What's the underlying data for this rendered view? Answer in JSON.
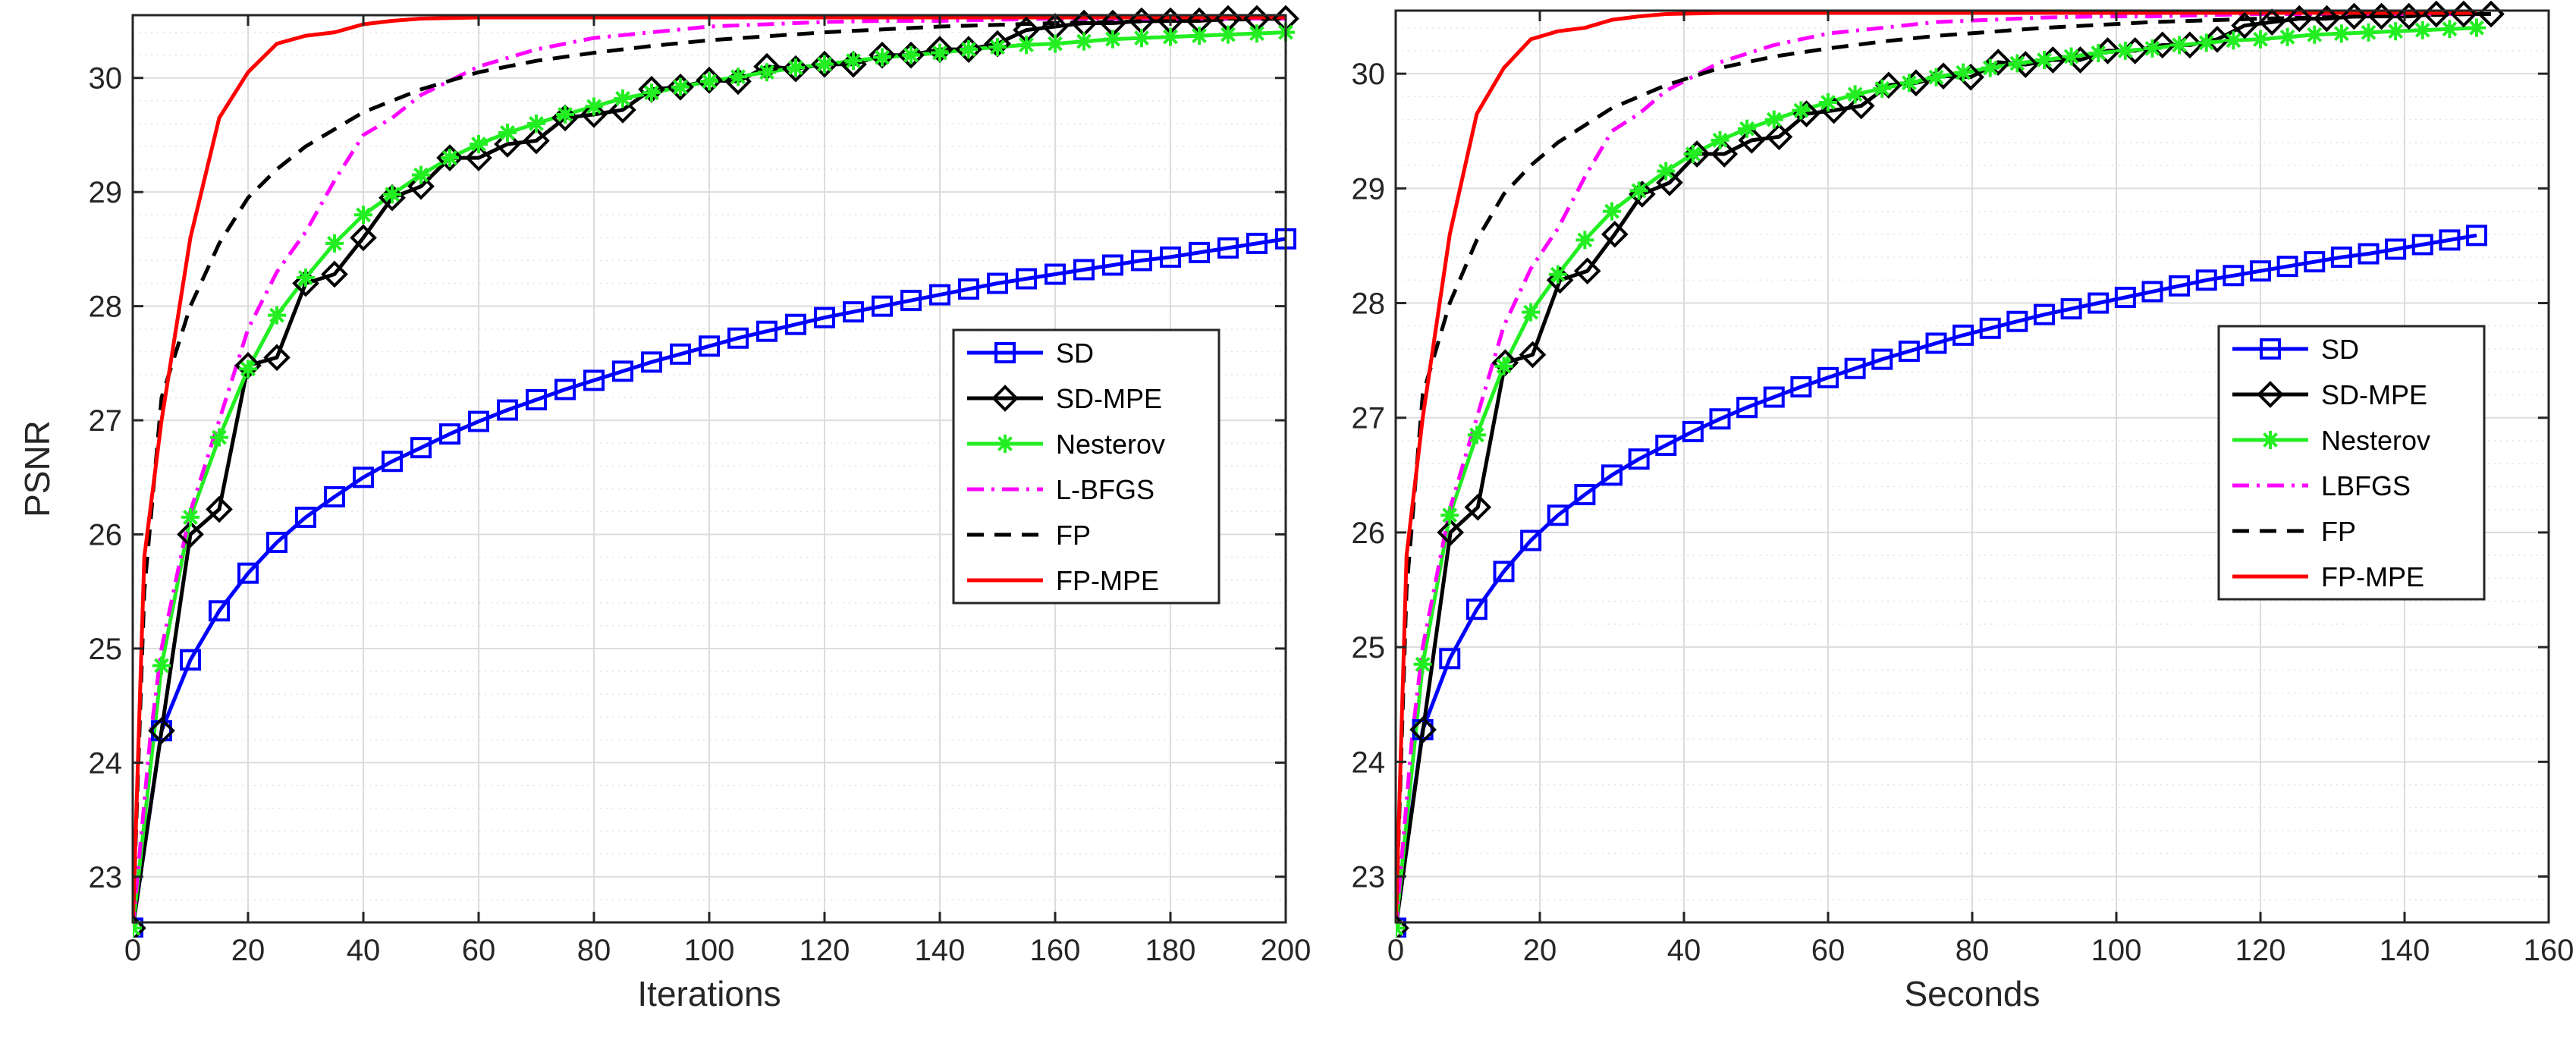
{
  "chart_data": [
    {
      "type": "line",
      "xlabel": "Iterations",
      "ylabel": "PSNR",
      "xlim": [
        0,
        200
      ],
      "ylim": [
        22.6,
        30.55
      ],
      "xticks": [
        "0",
        "20",
        "40",
        "60",
        "80",
        "100",
        "120",
        "140",
        "160",
        "180",
        "200"
      ],
      "yticks": [
        "23",
        "24",
        "25",
        "26",
        "27",
        "28",
        "29",
        "30"
      ],
      "grid": true,
      "minor_grid": true,
      "legend_position": "center-right",
      "series": [
        {
          "name": "SD",
          "color": "#0000ff",
          "style": "solid",
          "marker": "square",
          "marker_every": 5,
          "x": [
            0,
            5,
            10,
            15,
            20,
            25,
            30,
            35,
            40,
            45,
            50,
            55,
            60,
            65,
            70,
            75,
            80,
            85,
            90,
            95,
            100,
            105,
            110,
            115,
            120,
            125,
            130,
            135,
            140,
            145,
            150,
            155,
            160,
            165,
            170,
            175,
            180,
            185,
            190,
            195,
            200
          ],
          "y": [
            22.55,
            24.28,
            24.9,
            25.33,
            25.66,
            25.93,
            26.15,
            26.33,
            26.5,
            26.64,
            26.76,
            26.88,
            26.99,
            27.09,
            27.18,
            27.27,
            27.35,
            27.43,
            27.51,
            27.58,
            27.65,
            27.72,
            27.78,
            27.84,
            27.9,
            27.95,
            28.0,
            28.05,
            28.1,
            28.15,
            28.2,
            28.24,
            28.28,
            28.32,
            28.36,
            28.4,
            28.43,
            28.47,
            28.51,
            28.55,
            28.59
          ]
        },
        {
          "name": "SD-MPE",
          "color": "#000000",
          "style": "solid",
          "marker": "diamond",
          "marker_every": 5,
          "x": [
            0,
            5,
            10,
            15,
            20,
            25,
            30,
            35,
            40,
            45,
            50,
            55,
            60,
            65,
            70,
            75,
            80,
            85,
            90,
            95,
            100,
            105,
            110,
            115,
            120,
            125,
            130,
            135,
            140,
            145,
            150,
            155,
            160,
            165,
            170,
            175,
            180,
            185,
            190,
            195,
            200
          ],
          "y": [
            22.55,
            24.28,
            26.0,
            26.22,
            27.48,
            27.55,
            28.2,
            28.28,
            28.6,
            28.95,
            29.05,
            29.3,
            29.3,
            29.42,
            29.45,
            29.65,
            29.68,
            29.72,
            29.9,
            29.92,
            29.98,
            29.97,
            30.1,
            30.08,
            30.12,
            30.12,
            30.2,
            30.2,
            30.25,
            30.25,
            30.3,
            30.42,
            30.45,
            30.48,
            30.48,
            30.5,
            30.5,
            30.5,
            30.52,
            30.52,
            30.52
          ]
        },
        {
          "name": "Nesterov",
          "color": "#22ee22",
          "style": "solid",
          "marker": "asterisk",
          "marker_every": 5,
          "x": [
            0,
            5,
            10,
            15,
            20,
            25,
            30,
            35,
            40,
            45,
            50,
            55,
            60,
            65,
            70,
            75,
            80,
            85,
            90,
            95,
            100,
            105,
            110,
            115,
            120,
            125,
            130,
            135,
            140,
            145,
            150,
            155,
            160,
            165,
            170,
            175,
            180,
            185,
            190,
            195,
            200
          ],
          "y": [
            22.55,
            24.85,
            26.15,
            26.85,
            27.45,
            27.92,
            28.25,
            28.55,
            28.8,
            28.98,
            29.15,
            29.3,
            29.42,
            29.52,
            29.6,
            29.68,
            29.75,
            29.82,
            29.87,
            29.92,
            29.97,
            30.01,
            30.05,
            30.09,
            30.12,
            30.15,
            30.18,
            30.2,
            30.22,
            30.25,
            30.27,
            30.29,
            30.3,
            30.32,
            30.34,
            30.35,
            30.36,
            30.37,
            30.38,
            30.39,
            30.4
          ]
        },
        {
          "name": "L-BFGS",
          "color": "#ff00ff",
          "style": "dashdot",
          "marker": "none",
          "x": [
            0,
            3,
            5,
            10,
            15,
            20,
            25,
            30,
            35,
            40,
            45,
            50,
            60,
            70,
            80,
            90,
            100,
            110,
            120,
            130,
            140,
            150,
            160,
            180,
            200
          ],
          "y": [
            22.55,
            24.2,
            25.0,
            26.2,
            27.0,
            27.8,
            28.3,
            28.65,
            29.1,
            29.5,
            29.65,
            29.85,
            30.1,
            30.25,
            30.35,
            30.4,
            30.45,
            30.47,
            30.49,
            30.5,
            30.5,
            30.51,
            30.52,
            30.52,
            30.52
          ]
        },
        {
          "name": "FP",
          "color": "#000000",
          "style": "dashed",
          "marker": "none",
          "x": [
            0,
            2,
            5,
            10,
            15,
            20,
            25,
            30,
            40,
            50,
            60,
            70,
            80,
            90,
            100,
            120,
            140,
            160,
            180,
            200
          ],
          "y": [
            22.55,
            25.5,
            27.2,
            28.0,
            28.55,
            28.95,
            29.2,
            29.4,
            29.7,
            29.9,
            30.05,
            30.15,
            30.22,
            30.28,
            30.33,
            30.4,
            30.45,
            30.48,
            30.5,
            30.52
          ]
        },
        {
          "name": "FP-MPE",
          "color": "#ff0000",
          "style": "solid",
          "marker": "none",
          "x": [
            0,
            2,
            5,
            10,
            15,
            20,
            25,
            30,
            35,
            40,
            45,
            50,
            60,
            80,
            100,
            200
          ],
          "y": [
            22.55,
            25.8,
            27.0,
            28.6,
            29.65,
            30.05,
            30.3,
            30.37,
            30.4,
            30.47,
            30.5,
            30.52,
            30.53,
            30.53,
            30.53,
            30.53
          ]
        }
      ]
    },
    {
      "type": "line",
      "xlabel": "Seconds",
      "ylabel": "",
      "xlim": [
        0,
        160
      ],
      "ylim": [
        22.6,
        30.55
      ],
      "xticks": [
        "0",
        "20",
        "40",
        "60",
        "80",
        "100",
        "120",
        "140",
        "160"
      ],
      "yticks": [
        "23",
        "24",
        "25",
        "26",
        "27",
        "28",
        "29",
        "30"
      ],
      "grid": true,
      "minor_grid": true,
      "legend_position": "center-right",
      "series": [
        {
          "name": "SD",
          "color": "#0000ff",
          "style": "solid",
          "marker": "square",
          "marker_every": 5,
          "x": [
            0,
            3.75,
            7.5,
            11.25,
            15,
            18.75,
            22.5,
            26.25,
            30,
            33.75,
            37.5,
            41.25,
            45,
            48.75,
            52.5,
            56.25,
            60,
            63.75,
            67.5,
            71.25,
            75,
            78.75,
            82.5,
            86.25,
            90,
            93.75,
            97.5,
            101.25,
            105,
            108.75,
            112.5,
            116.25,
            120,
            123.75,
            127.5,
            131.25,
            135,
            138.75,
            142.5,
            146.25,
            150
          ],
          "y": [
            22.55,
            24.28,
            24.9,
            25.33,
            25.66,
            25.93,
            26.15,
            26.33,
            26.5,
            26.64,
            26.76,
            26.88,
            26.99,
            27.09,
            27.18,
            27.27,
            27.35,
            27.43,
            27.51,
            27.58,
            27.65,
            27.72,
            27.78,
            27.84,
            27.9,
            27.95,
            28.0,
            28.05,
            28.1,
            28.15,
            28.2,
            28.24,
            28.28,
            28.32,
            28.36,
            28.4,
            28.43,
            28.47,
            28.51,
            28.55,
            28.59
          ]
        },
        {
          "name": "SD-MPE",
          "color": "#000000",
          "style": "solid",
          "marker": "diamond",
          "marker_every": 5,
          "x": [
            0,
            3.8,
            7.6,
            11.4,
            15.2,
            19,
            22.8,
            26.6,
            30.4,
            34.2,
            38,
            41.8,
            45.6,
            49.4,
            53.2,
            57,
            60.8,
            64.6,
            68.4,
            72.2,
            76,
            79.8,
            83.6,
            87.4,
            91.2,
            95,
            98.8,
            102.6,
            106.4,
            110.2,
            114,
            117.8,
            121.6,
            125.4,
            129.2,
            133,
            136.8,
            140.6,
            144.4,
            148.2,
            152
          ],
          "y": [
            22.55,
            24.28,
            26.0,
            26.22,
            27.48,
            27.55,
            28.2,
            28.28,
            28.6,
            28.95,
            29.05,
            29.3,
            29.3,
            29.42,
            29.45,
            29.65,
            29.68,
            29.72,
            29.9,
            29.92,
            29.98,
            29.97,
            30.1,
            30.08,
            30.12,
            30.12,
            30.2,
            30.2,
            30.25,
            30.25,
            30.3,
            30.42,
            30.45,
            30.48,
            30.48,
            30.5,
            30.5,
            30.5,
            30.52,
            30.52,
            30.52
          ]
        },
        {
          "name": "Nesterov",
          "color": "#22ee22",
          "style": "solid",
          "marker": "asterisk",
          "marker_every": 5,
          "x": [
            0,
            3.75,
            7.5,
            11.25,
            15,
            18.75,
            22.5,
            26.25,
            30,
            33.75,
            37.5,
            41.25,
            45,
            48.75,
            52.5,
            56.25,
            60,
            63.75,
            67.5,
            71.25,
            75,
            78.75,
            82.5,
            86.25,
            90,
            93.75,
            97.5,
            101.25,
            105,
            108.75,
            112.5,
            116.25,
            120,
            123.75,
            127.5,
            131.25,
            135,
            138.75,
            142.5,
            146.25,
            150
          ],
          "y": [
            22.55,
            24.85,
            26.15,
            26.85,
            27.45,
            27.92,
            28.25,
            28.55,
            28.8,
            28.98,
            29.15,
            29.3,
            29.42,
            29.52,
            29.6,
            29.68,
            29.75,
            29.82,
            29.87,
            29.92,
            29.97,
            30.01,
            30.05,
            30.09,
            30.12,
            30.15,
            30.18,
            30.2,
            30.22,
            30.25,
            30.27,
            30.29,
            30.3,
            30.32,
            30.34,
            30.35,
            30.36,
            30.37,
            30.38,
            30.39,
            30.4
          ]
        },
        {
          "name": "LBFGS",
          "color": "#ff00ff",
          "style": "dashdot",
          "marker": "none",
          "x": [
            0,
            2.25,
            3.75,
            7.5,
            11.25,
            15,
            18.75,
            22.5,
            26.25,
            30,
            33.75,
            37.5,
            45,
            52.5,
            60,
            67.5,
            75,
            82.5,
            90,
            97.5,
            105,
            112.5,
            120,
            135,
            150
          ],
          "y": [
            22.55,
            24.2,
            25.0,
            26.2,
            27.0,
            27.8,
            28.3,
            28.65,
            29.1,
            29.5,
            29.65,
            29.85,
            30.1,
            30.25,
            30.35,
            30.4,
            30.45,
            30.47,
            30.49,
            30.5,
            30.5,
            30.51,
            30.52,
            30.52,
            30.52
          ]
        },
        {
          "name": "FP",
          "color": "#000000",
          "style": "dashed",
          "marker": "none",
          "x": [
            0,
            1.5,
            3.75,
            7.5,
            11.25,
            15,
            18.75,
            22.5,
            30,
            37.5,
            45,
            52.5,
            60,
            67.5,
            75,
            90,
            105,
            120,
            135,
            150
          ],
          "y": [
            22.55,
            25.5,
            27.2,
            28.0,
            28.55,
            28.95,
            29.2,
            29.4,
            29.7,
            29.9,
            30.05,
            30.15,
            30.22,
            30.28,
            30.33,
            30.4,
            30.45,
            30.48,
            30.5,
            30.52
          ]
        },
        {
          "name": "FP-MPE",
          "color": "#ff0000",
          "style": "solid",
          "marker": "none",
          "x": [
            0,
            1.5,
            3.75,
            7.5,
            11.25,
            15,
            18.75,
            22.5,
            26.25,
            30,
            33.75,
            37.5,
            45,
            60,
            75,
            150
          ],
          "y": [
            22.55,
            25.8,
            27.0,
            28.6,
            29.65,
            30.05,
            30.3,
            30.37,
            30.4,
            30.47,
            30.5,
            30.52,
            30.53,
            30.53,
            30.53,
            30.53
          ]
        }
      ]
    }
  ]
}
